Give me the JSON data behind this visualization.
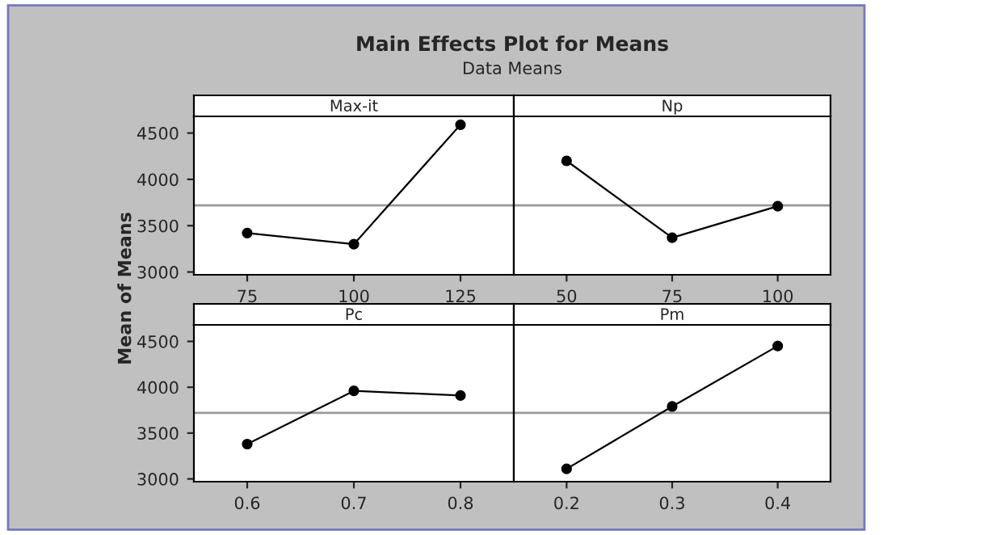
{
  "chart_data": [
    {
      "type": "line",
      "title": "Max-it",
      "ylabel": "Mean of Means",
      "annotations": [
        "Main Effects Plot for Means",
        "Data Means"
      ],
      "x": [
        75,
        100,
        125
      ],
      "series": [
        {
          "color": "#000000",
          "values": [
            3420,
            3300,
            4590
          ]
        }
      ],
      "xlim": [
        62.5,
        137.5
      ],
      "xticks": [
        75,
        100,
        125
      ],
      "ylim": [
        2970,
        4680
      ],
      "yticks": [
        3000,
        3500,
        4000,
        4500
      ],
      "ref_lines": [
        {
          "axis": "y",
          "value": 3720,
          "color": "#999999"
        }
      ],
      "marker": "circle",
      "line_style": "solid",
      "grid": false,
      "legend": false
    },
    {
      "type": "line",
      "title": "Np",
      "x": [
        50,
        75,
        100
      ],
      "series": [
        {
          "color": "#000000",
          "values": [
            4200,
            3370,
            3710
          ]
        }
      ],
      "xlim": [
        37.5,
        112.5
      ],
      "xticks": [
        50,
        75,
        100
      ],
      "ylim": [
        2970,
        4680
      ],
      "yticks": [
        3000,
        3500,
        4000,
        4500
      ],
      "tick_labels": "x",
      "ref_lines": [
        {
          "axis": "y",
          "value": 3720,
          "color": "#999999"
        }
      ],
      "marker": "circle",
      "line_style": "solid",
      "grid": false,
      "legend": false
    },
    {
      "type": "line",
      "title": "Pc",
      "x": [
        0.6,
        0.7,
        0.8
      ],
      "series": [
        {
          "color": "#000000",
          "values": [
            3380,
            3960,
            3910
          ]
        }
      ],
      "xlim": [
        0.55,
        0.85
      ],
      "xticks": [
        0.6,
        0.7,
        0.8
      ],
      "ylim": [
        2970,
        4680
      ],
      "yticks": [
        3000,
        3500,
        4000,
        4500
      ],
      "ref_lines": [
        {
          "axis": "y",
          "value": 3720,
          "color": "#999999"
        }
      ],
      "marker": "circle",
      "line_style": "solid",
      "grid": false,
      "legend": false
    },
    {
      "type": "line",
      "title": "Pm",
      "x": [
        0.2,
        0.3,
        0.4
      ],
      "series": [
        {
          "color": "#000000",
          "values": [
            3110,
            3790,
            4450
          ]
        }
      ],
      "xlim": [
        0.15,
        0.45
      ],
      "xticks": [
        0.2,
        0.3,
        0.4
      ],
      "ylim": [
        2970,
        4680
      ],
      "yticks": [
        3000,
        3500,
        4000,
        4500
      ],
      "tick_labels": "x",
      "ref_lines": [
        {
          "axis": "y",
          "value": 3720,
          "color": "#999999"
        }
      ],
      "marker": "circle",
      "line_style": "solid",
      "grid": false,
      "legend": false
    }
  ]
}
